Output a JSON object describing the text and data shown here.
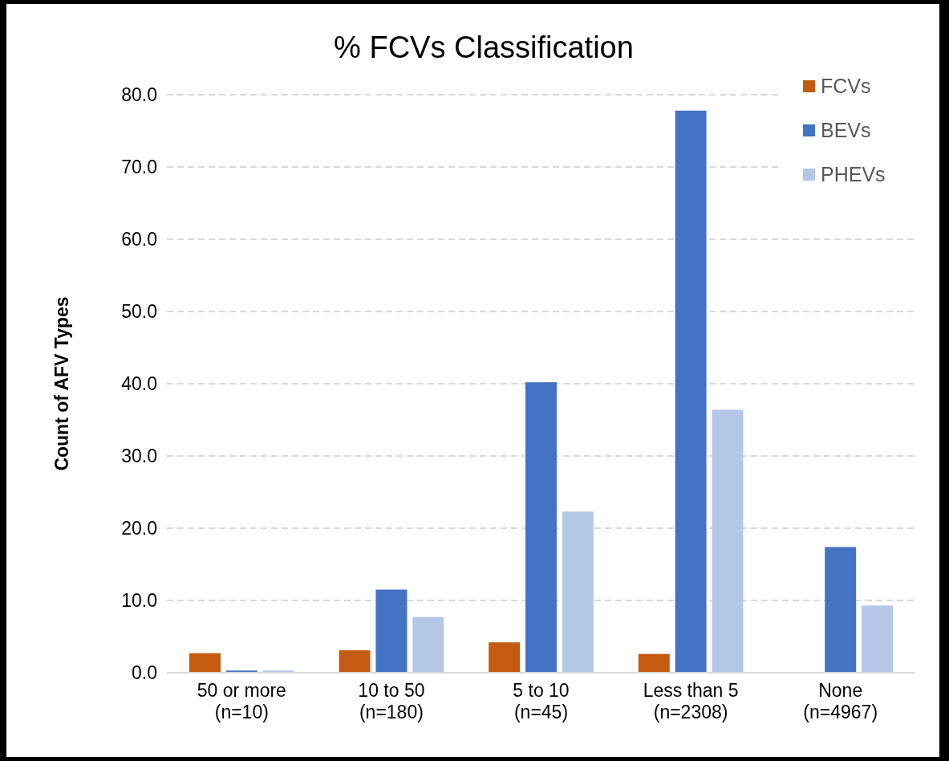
{
  "chart_data": {
    "type": "bar",
    "title": "% FCVs Classification",
    "ylabel": "Count of AFV Types",
    "categories": [
      "50 or more\n(n=10)",
      "10 to 50\n(n=180)",
      "5 to 10\n(n=45)",
      "Less than 5\n(n=2308)",
      "None\n(n=4967)"
    ],
    "series": [
      {
        "name": "FCVs",
        "color": "#c55a11",
        "values": [
          2.7,
          3.1,
          4.2,
          2.6,
          0
        ]
      },
      {
        "name": "BEVs",
        "color": "#4472c4",
        "values": [
          0.3,
          11.5,
          40.2,
          77.8,
          17.4
        ]
      },
      {
        "name": "PHEVs",
        "color": "#b4c7e7",
        "values": [
          0.3,
          7.7,
          22.3,
          36.4,
          9.3
        ]
      }
    ],
    "ylim": [
      0,
      80
    ],
    "yticks": [
      {
        "value": 0,
        "label": "0.0"
      },
      {
        "value": 10,
        "label": "10.0"
      },
      {
        "value": 20,
        "label": "20.0"
      },
      {
        "value": 30,
        "label": "30.0"
      },
      {
        "value": 40,
        "label": "40.0"
      },
      {
        "value": 50,
        "label": "50.0"
      },
      {
        "value": 60,
        "label": "60.0"
      },
      {
        "value": 70,
        "label": "70.0"
      },
      {
        "value": 80,
        "label": "80.0"
      }
    ],
    "grid": "y",
    "legend": "top right"
  }
}
